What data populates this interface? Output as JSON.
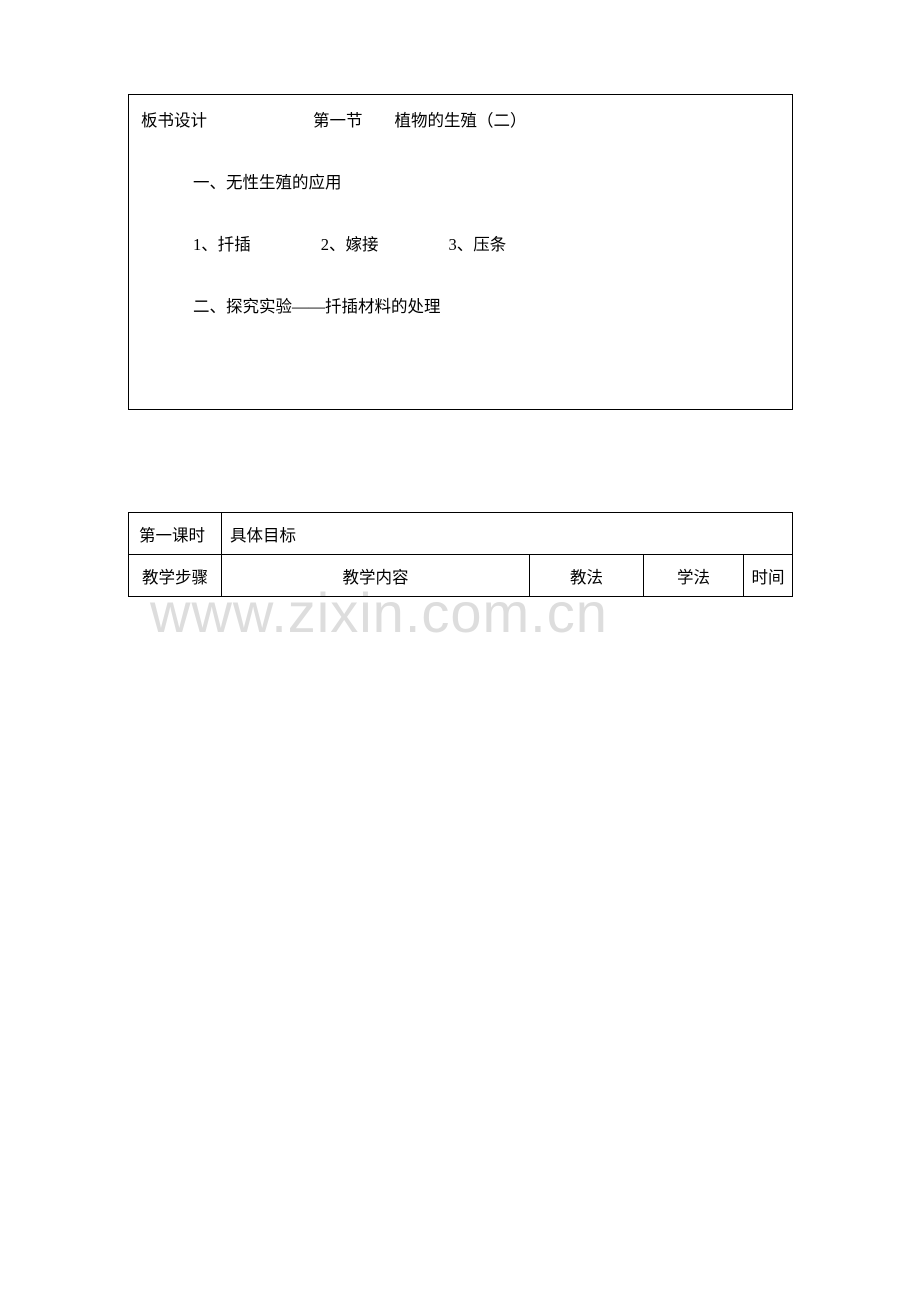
{
  "box1": {
    "label": "板书设计",
    "section": "第一节",
    "title": "植物的生殖（二）",
    "heading_a": "一、无性生殖的应用",
    "item1": "1、扦插",
    "item2": "2、嫁接",
    "item3": "3、压条",
    "heading_b": "二、探究实验——扦插材料的处理"
  },
  "table2": {
    "r1c1": "第一课时",
    "r1c2": "具体目标",
    "r2c1": "教学步骤",
    "r2c2": "教学内容",
    "r2c3": "教法",
    "r2c4": "学法",
    "r2c5": "时间"
  },
  "watermark": "www.zixin.com.cn",
  "colors": {
    "text": "#000000",
    "border": "#000000",
    "background": "#ffffff",
    "watermark": "#dddddd"
  }
}
